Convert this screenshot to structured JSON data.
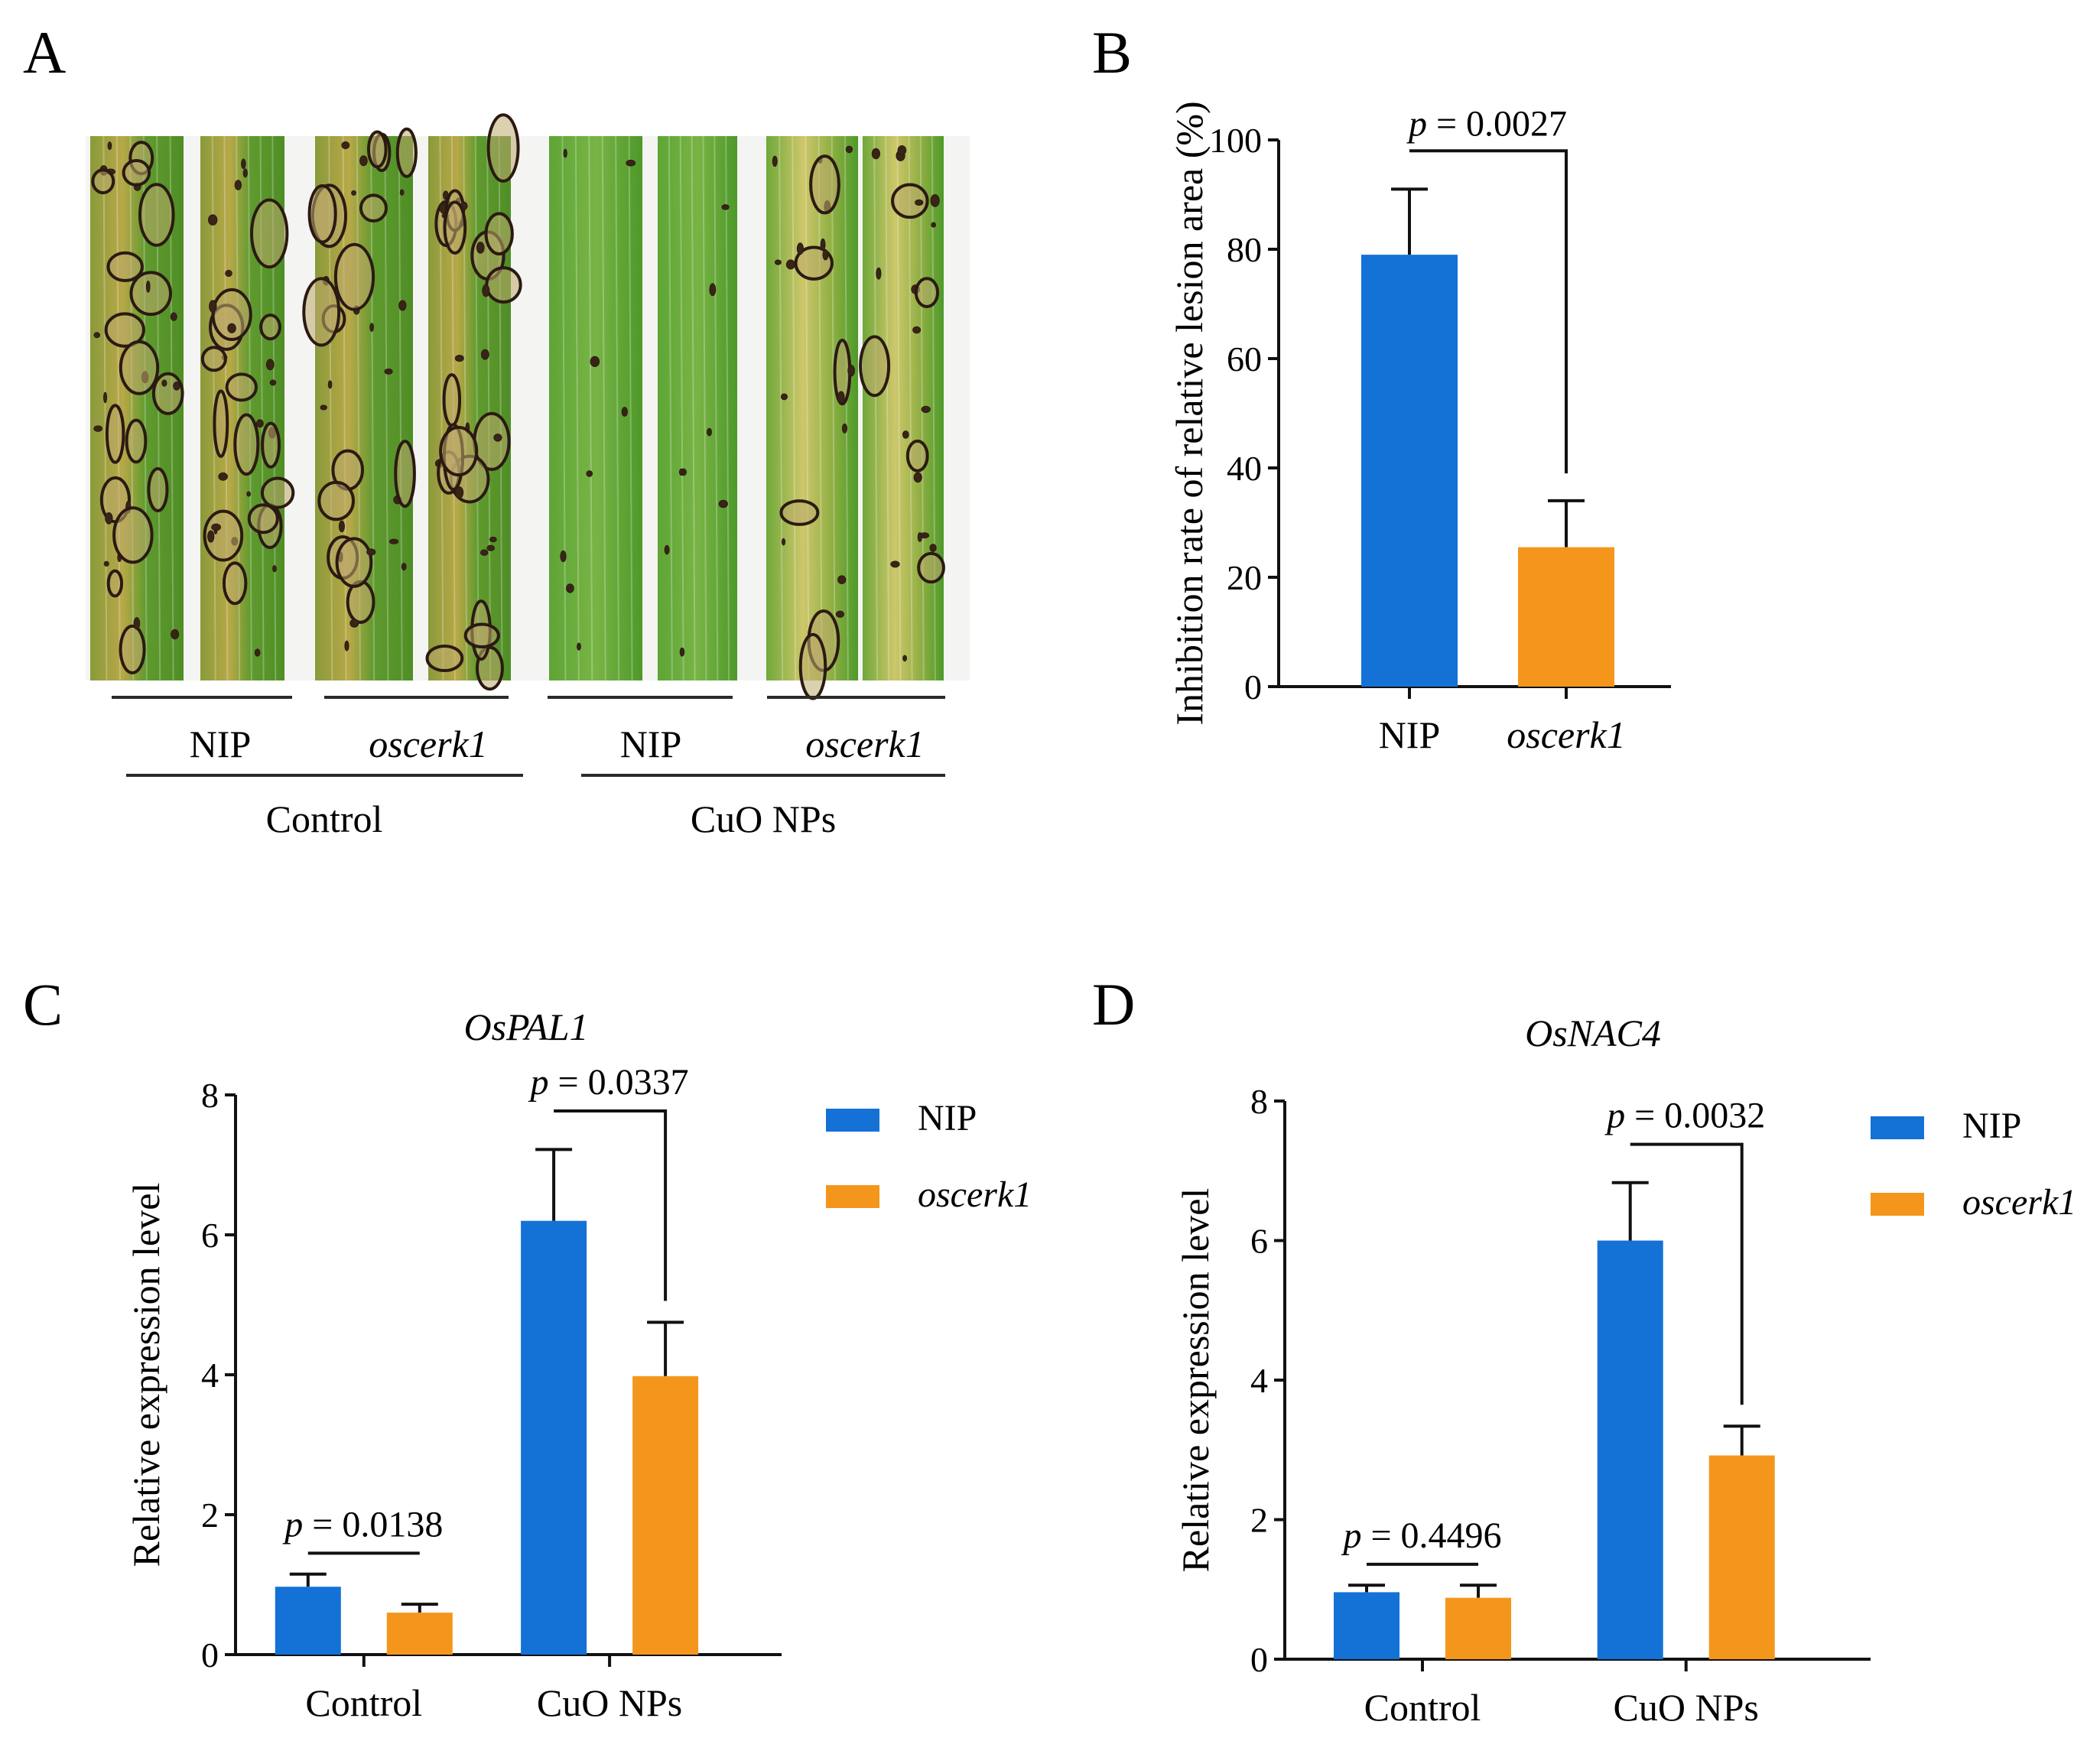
{
  "colors": {
    "NIP": "#1471d6",
    "oscerk1": "#f4961c",
    "axis": "#111111"
  },
  "panel_A": {
    "letter": "A",
    "leaf_labels": [
      "NIP",
      "oscerk1",
      "NIP",
      "oscerk1"
    ],
    "treatment_labels": [
      "Control",
      "CuO NPs"
    ],
    "leaves": [
      {
        "genotype": "NIP",
        "treatment": "Control",
        "severity": "high"
      },
      {
        "genotype": "NIP",
        "treatment": "Control",
        "severity": "high"
      },
      {
        "genotype": "oscerk1",
        "treatment": "Control",
        "severity": "high"
      },
      {
        "genotype": "oscerk1",
        "treatment": "Control",
        "severity": "high"
      },
      {
        "genotype": "NIP",
        "treatment": "CuO NPs",
        "severity": "low"
      },
      {
        "genotype": "NIP",
        "treatment": "CuO NPs",
        "severity": "low"
      },
      {
        "genotype": "oscerk1",
        "treatment": "CuO NPs",
        "severity": "medium"
      },
      {
        "genotype": "oscerk1",
        "treatment": "CuO NPs",
        "severity": "medium"
      }
    ]
  },
  "chart_data": [
    {
      "panel": "B",
      "type": "bar",
      "ylabel": "Inhibition rate of relative lesion area (%)",
      "categories": [
        "NIP",
        "oscerk1"
      ],
      "values": [
        79,
        25.5
      ],
      "errors": [
        12,
        8.5
      ],
      "ylim": [
        0,
        100
      ],
      "yticks": [
        0,
        20,
        40,
        60,
        80,
        100
      ],
      "annotations": [
        {
          "prefix": "p",
          "text": " = 0.0027",
          "between": [
            0,
            1
          ]
        }
      ]
    },
    {
      "panel": "C",
      "type": "bar",
      "title": "OsPAL1",
      "ylabel": "Relative expression level",
      "categories": [
        "Control",
        "CuO NPs"
      ],
      "series": [
        {
          "name": "NIP",
          "values": [
            0.97,
            6.2
          ],
          "errors": [
            0.18,
            1.02
          ]
        },
        {
          "name": "oscerk1",
          "values": [
            0.6,
            3.98
          ],
          "errors": [
            0.12,
            0.77
          ]
        }
      ],
      "ylim": [
        0,
        8
      ],
      "yticks": [
        0,
        2,
        4,
        6,
        8
      ],
      "annotations": [
        {
          "prefix": "p",
          "text": " = 0.0138",
          "category": 0
        },
        {
          "prefix": "p",
          "text": " = 0.0337",
          "category": 1
        }
      ]
    },
    {
      "panel": "D",
      "type": "bar",
      "title": "OsNAC4",
      "ylabel": "Relative expression level",
      "categories": [
        "Control",
        "CuO NPs"
      ],
      "series": [
        {
          "name": "NIP",
          "values": [
            0.96,
            6.0
          ],
          "errors": [
            0.1,
            0.83
          ]
        },
        {
          "name": "oscerk1",
          "values": [
            0.88,
            2.92
          ],
          "errors": [
            0.18,
            0.42
          ]
        }
      ],
      "ylim": [
        0,
        8
      ],
      "yticks": [
        0,
        2,
        4,
        6,
        8
      ],
      "annotations": [
        {
          "prefix": "p",
          "text": " = 0.4496",
          "category": 0
        },
        {
          "prefix": "p",
          "text": " = 0.0032",
          "category": 1
        }
      ]
    }
  ]
}
